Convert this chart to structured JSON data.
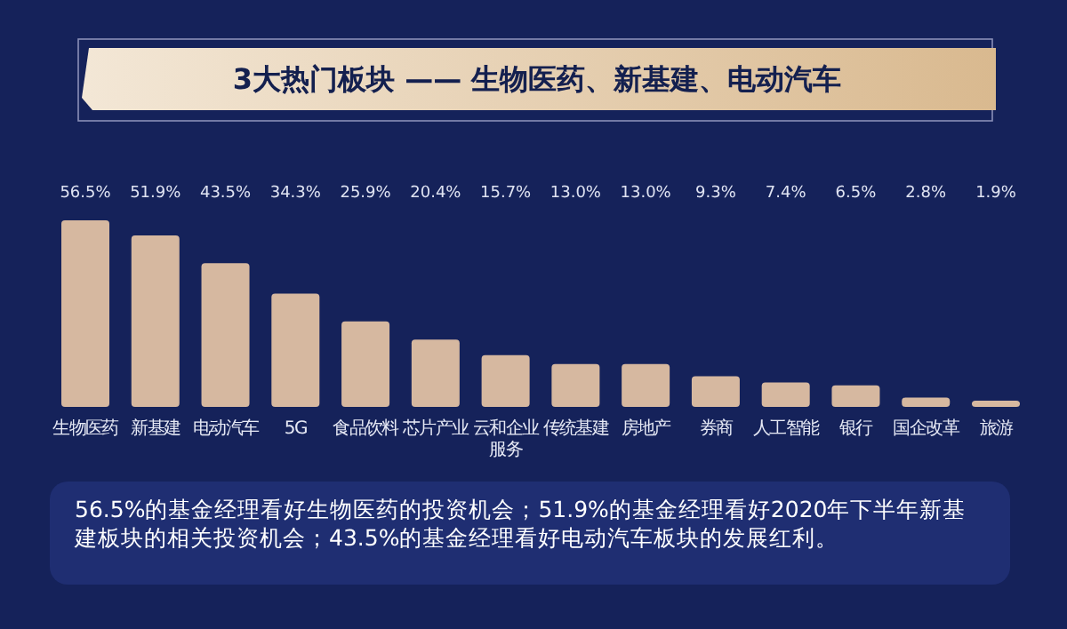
{
  "chart_data": {
    "type": "bar",
    "title": "3大热门板块 —— 生物医药、新基建、电动汽车",
    "categories": [
      "生物医药",
      "新基建",
      "电动汽车",
      "5G",
      "食品饮料",
      "芯片产业",
      "云和企业服务",
      "传统基建",
      "房地产",
      "券商",
      "人工智能",
      "银行",
      "国企改革",
      "旅游"
    ],
    "values": [
      56.5,
      51.9,
      43.5,
      34.3,
      25.9,
      20.4,
      15.7,
      13.0,
      13.0,
      9.3,
      7.4,
      6.5,
      2.8,
      1.9
    ],
    "value_labels": [
      "56.5%",
      "51.9%",
      "43.5%",
      "34.3%",
      "25.9%",
      "20.4%",
      "15.7%",
      "13.0%",
      "13.0%",
      "9.3%",
      "7.4%",
      "6.5%",
      "2.8%",
      "1.9%"
    ],
    "color": "#d6b8a0",
    "annotations": [
      "56.5%的基金经理看好生物医药的投资机会；51.9%的基金经理看好2020年下半年新基建板块的相关投资机会；43.5%的基金经理看好电动汽车板块的发展红利。"
    ]
  }
}
